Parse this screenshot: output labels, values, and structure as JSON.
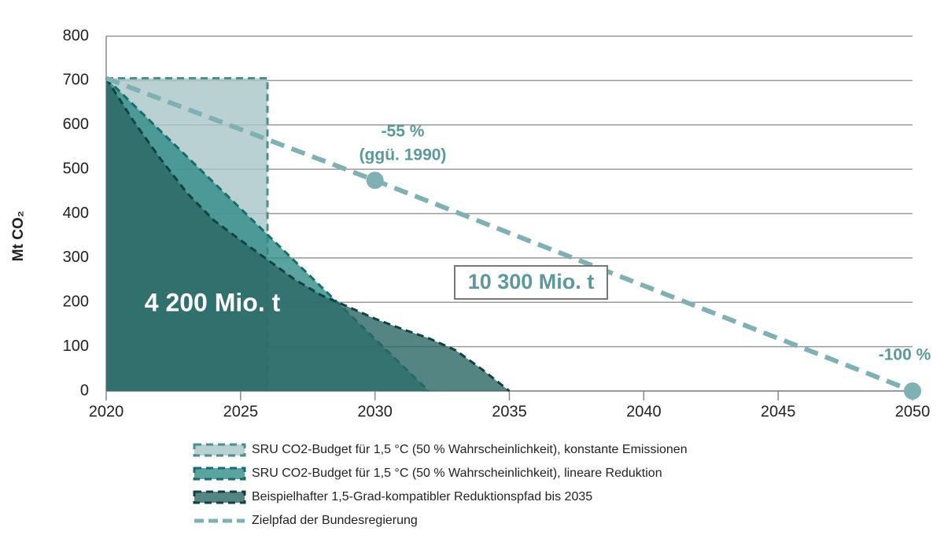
{
  "chart_data": {
    "type": "area",
    "y_label": "Mt CO₂",
    "xlim": [
      2020,
      2050
    ],
    "xticks": [
      2020,
      2025,
      2030,
      2035,
      2040,
      2045,
      2050
    ],
    "ylim": [
      0,
      800
    ],
    "yticks": [
      0,
      100,
      200,
      300,
      400,
      500,
      600,
      700,
      800
    ],
    "grid": true,
    "series": [
      {
        "name": "SRU CO2-Budget für 1,5 °C (50 % Wahrscheinlichkeit), konstante Emissionen",
        "style": "area",
        "color": "#a9c6c5",
        "edge": "#4a8f8f",
        "x": [
          2020,
          2026,
          2026
        ],
        "values": [
          705,
          705,
          0
        ]
      },
      {
        "name": "SRU CO2-Budget für 1,5 °C (50 % Wahrscheinlichkeit), lineare Reduktion",
        "style": "area",
        "color": "#2f8c88",
        "edge": "#156e6c",
        "x": [
          2020,
          2032
        ],
        "values": [
          705,
          0
        ]
      },
      {
        "name": "Beispielhafter 1,5-Grad-kompatibler Reduktionspfad bis 2035",
        "style": "area",
        "color": "#2a6663",
        "edge": "#0f4240",
        "x": [
          2020,
          2021,
          2022,
          2023,
          2024,
          2025,
          2026,
          2027,
          2028,
          2029,
          2030,
          2031,
          2032,
          2033,
          2034,
          2035
        ],
        "values": [
          705,
          610,
          525,
          447,
          385,
          340,
          296,
          252,
          216,
          190,
          163,
          140,
          119,
          92,
          48,
          0
        ]
      },
      {
        "name": "Zielpfad der Bundesregierung",
        "style": "line",
        "color": "#7fb0b4",
        "x": [
          2020,
          2030,
          2050
        ],
        "values": [
          705,
          475,
          0
        ],
        "marker_x": [
          2030,
          2050
        ]
      }
    ],
    "annotations": [
      "-55 %",
      "(ggü. 1990)",
      "-100 %",
      "4 200 Mio. t",
      "10 300 Mio. t"
    ]
  }
}
